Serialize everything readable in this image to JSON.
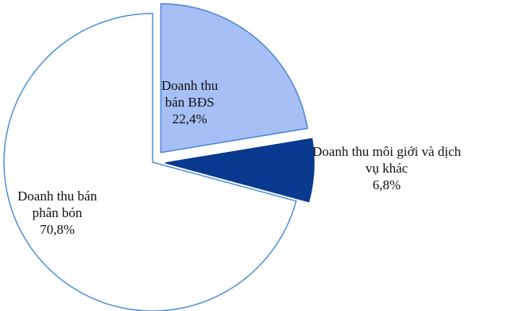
{
  "chart_data": {
    "type": "pie",
    "title": "",
    "slices": [
      {
        "label_lines": [
          "Doanh thu",
          "bán BĐS"
        ],
        "value_text": "22,4%",
        "value": 22.4,
        "color": "#a6bff5",
        "stroke": "#4a86d8",
        "exploded": true
      },
      {
        "label_lines": [
          "Doanh thu môi giới và dịch",
          "vụ khác"
        ],
        "value_text": "6,8%",
        "value": 6.8,
        "color": "#0a3a8f",
        "stroke": "#0a3a8f",
        "exploded": true
      },
      {
        "label_lines": [
          "Doanh thu bán",
          "phân bón"
        ],
        "value_text": "70,8%",
        "value": 70.8,
        "color": "#ffffff",
        "stroke": "#4a90d9",
        "exploded": false
      }
    ],
    "legend": "none"
  }
}
